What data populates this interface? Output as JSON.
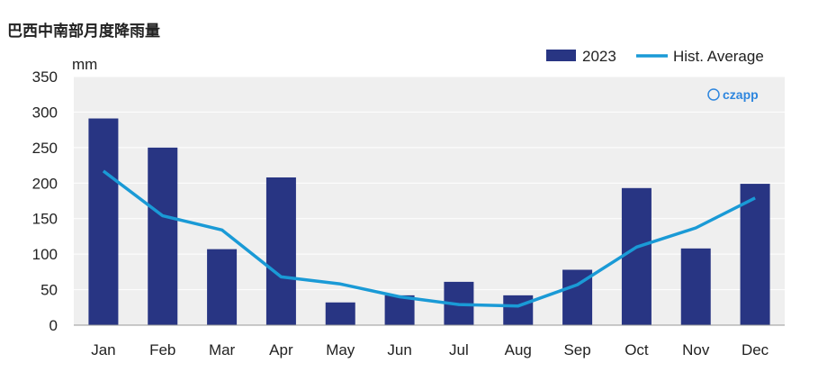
{
  "chart_data": {
    "type": "bar",
    "title": "巴西中南部月度降雨量",
    "ylabel": "mm",
    "xlabel": "",
    "categories": [
      "Jan",
      "Feb",
      "Mar",
      "Apr",
      "May",
      "Jun",
      "Jul",
      "Aug",
      "Sep",
      "Oct",
      "Nov",
      "Dec"
    ],
    "ylim": [
      0,
      350
    ],
    "yticks": [
      0,
      50,
      100,
      150,
      200,
      250,
      300,
      350
    ],
    "grid": true,
    "legend_position": "top-right",
    "series": [
      {
        "name": "2023",
        "type": "bar",
        "color": "#283583",
        "values": [
          291,
          250,
          107,
          208,
          32,
          42,
          61,
          42,
          78,
          193,
          108,
          199
        ]
      },
      {
        "name": "Hist. Average",
        "type": "line",
        "color": "#1a9ad6",
        "values": [
          217,
          154,
          134,
          68,
          58,
          40,
          29,
          27,
          57,
          110,
          137,
          179
        ]
      }
    ],
    "watermark": "czapp"
  }
}
